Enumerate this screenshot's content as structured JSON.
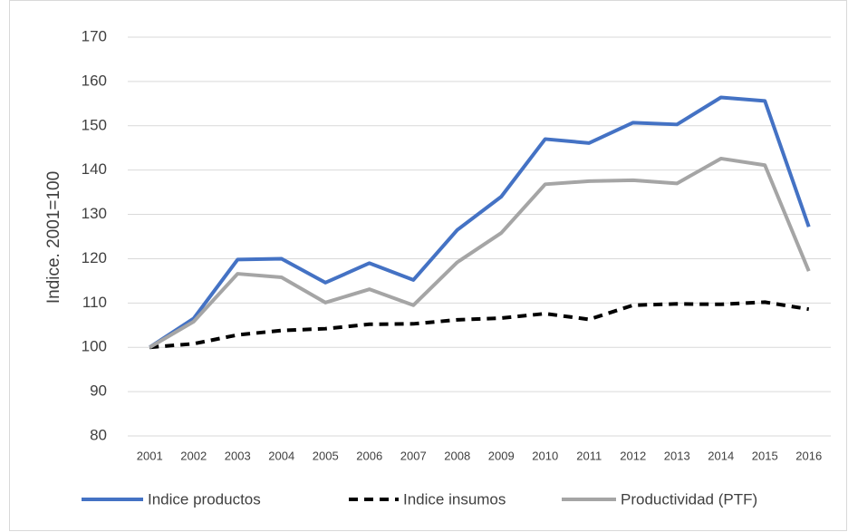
{
  "chart_data": {
    "type": "line",
    "y_label": "Indice. 2001=100",
    "categories": [
      "2001",
      "2002",
      "2003",
      "2004",
      "2005",
      "2006",
      "2007",
      "2008",
      "2009",
      "2010",
      "2011",
      "2012",
      "2013",
      "2014",
      "2015",
      "2016"
    ],
    "series": [
      {
        "name": "Indice productos",
        "color": "#4472c4",
        "dashed": false,
        "values": [
          100,
          106.5,
          119.8,
          120,
          114.6,
          119,
          115.2,
          126.5,
          134,
          147,
          146.1,
          150.7,
          150.3,
          156.4,
          155.6,
          127.2
        ]
      },
      {
        "name": "Indice insumos",
        "color": "#000000",
        "dashed": true,
        "values": [
          100,
          100.8,
          102.8,
          103.8,
          104.2,
          105.2,
          105.3,
          106.2,
          106.6,
          107.6,
          106.3,
          109.5,
          109.8,
          109.7,
          110.2,
          108.6
        ]
      },
      {
        "name": "Productividad (PTF)",
        "color": "#a5a5a5",
        "dashed": false,
        "values": [
          100,
          105.8,
          116.6,
          115.8,
          110.1,
          113.1,
          109.5,
          119.2,
          125.8,
          136.8,
          137.5,
          137.7,
          137,
          142.6,
          141.1,
          117.2
        ]
      }
    ],
    "ylim": [
      80,
      170
    ],
    "yticks": [
      80,
      90,
      100,
      110,
      120,
      130,
      140,
      150,
      160,
      170
    ],
    "grid": true,
    "legend": "bottom"
  }
}
